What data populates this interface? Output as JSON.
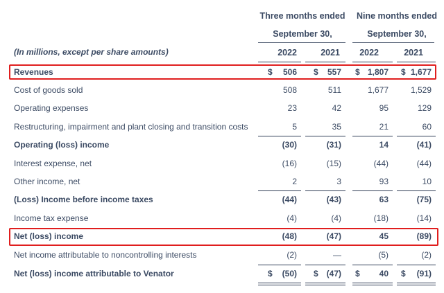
{
  "header": {
    "group1_line1": "Three months ended",
    "group1_line2": "September 30,",
    "group2_line1": "Nine months ended",
    "group2_line2": "September 30,",
    "units_note": "(In millions, except per share amounts)",
    "years": [
      "2022",
      "2021",
      "2022",
      "2021"
    ]
  },
  "rows": [
    {
      "label": "Revenues",
      "bold": true,
      "dollar": [
        "$",
        "$",
        "$",
        "$"
      ],
      "values": [
        "506",
        "557",
        "1,807",
        "1,677"
      ]
    },
    {
      "label": "Cost of goods sold",
      "bold": false,
      "values": [
        "508",
        "511",
        "1,677",
        "1,529"
      ]
    },
    {
      "label": "Operating expenses",
      "bold": false,
      "values": [
        "23",
        "42",
        "95",
        "129"
      ]
    },
    {
      "label": "Restructuring, impairment and plant closing and transition costs",
      "bold": false,
      "values": [
        "5",
        "35",
        "21",
        "60"
      ]
    },
    {
      "label": "Operating (loss) income",
      "bold": true,
      "values": [
        "(30)",
        "(31)",
        "14",
        "(41)"
      ]
    },
    {
      "label": "Interest expense, net",
      "bold": false,
      "values": [
        "(16)",
        "(15)",
        "(44)",
        "(44)"
      ]
    },
    {
      "label": "Other income, net",
      "bold": false,
      "values": [
        "2",
        "3",
        "93",
        "10"
      ]
    },
    {
      "label": "(Loss) Income before income taxes",
      "bold": true,
      "values": [
        "(44)",
        "(43)",
        "63",
        "(75)"
      ]
    },
    {
      "label": "Income tax expense",
      "bold": false,
      "values": [
        "(4)",
        "(4)",
        "(18)",
        "(14)"
      ]
    },
    {
      "label": "Net (loss) income",
      "bold": true,
      "values": [
        "(48)",
        "(47)",
        "45",
        "(89)"
      ]
    },
    {
      "label": "Net income attributable to noncontrolling interests",
      "bold": false,
      "values": [
        "(2)",
        "—",
        "(5)",
        "(2)"
      ]
    },
    {
      "label": "Net (loss) income attributable to Venator",
      "bold": true,
      "dollar": [
        "$",
        "$",
        "$",
        "$"
      ],
      "values": [
        "(50)",
        "(47)",
        "40",
        "(91)"
      ]
    }
  ],
  "highlight_color": "#e01e1e",
  "text_color": "#3b4a63"
}
